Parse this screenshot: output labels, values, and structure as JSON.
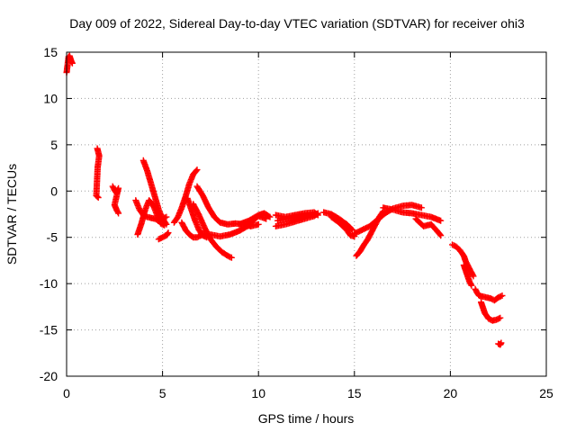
{
  "chart_data": {
    "type": "scatter",
    "title": "Day 009 of 2022, Sidereal Day-to-day VTEC variation (SDTVAR) for receiver ohi3",
    "xlabel": "GPS time / hours",
    "ylabel": "SDTVAR / TECUs",
    "xlim": [
      0,
      25
    ],
    "ylim": [
      -20,
      15
    ],
    "xticks": [
      0,
      5,
      10,
      15,
      20,
      25
    ],
    "xtick_labels": [
      "0",
      "5",
      "10",
      "15",
      "20",
      "25"
    ],
    "yticks": [
      -20,
      -15,
      -10,
      -5,
      0,
      5,
      10,
      15
    ],
    "ytick_labels": [
      "-20",
      "-15",
      "-10",
      "-5",
      "0",
      "5",
      "10",
      "15"
    ],
    "grid": true,
    "marker": "+",
    "color": "#ff0000",
    "series": [
      {
        "name": "s01",
        "points": [
          [
            0.0,
            12.8
          ],
          [
            0.05,
            13.6
          ],
          [
            0.1,
            14.5
          ],
          [
            0.15,
            14.6
          ],
          [
            0.2,
            14.3
          ],
          [
            0.25,
            14.0
          ],
          [
            0.3,
            13.8
          ]
        ]
      },
      {
        "name": "s02",
        "points": [
          [
            1.6,
            4.6
          ],
          [
            1.65,
            4.2
          ],
          [
            1.7,
            3.8
          ],
          [
            1.62,
            2.6
          ],
          [
            1.55,
            -0.5
          ],
          [
            1.65,
            -0.7
          ]
        ]
      },
      {
        "name": "s03",
        "points": [
          [
            2.4,
            0.5
          ],
          [
            2.5,
            0.1
          ],
          [
            2.6,
            -0.2
          ],
          [
            2.7,
            0.3
          ],
          [
            2.5,
            -1.5
          ],
          [
            2.6,
            -2.0
          ],
          [
            2.7,
            -2.4
          ]
        ]
      },
      {
        "name": "s04",
        "points": [
          [
            3.6,
            -1.0
          ],
          [
            3.8,
            -2.0
          ],
          [
            4.0,
            -2.6
          ],
          [
            4.2,
            -2.8
          ],
          [
            4.4,
            -2.9
          ],
          [
            4.6,
            -3.0
          ],
          [
            4.8,
            -3.2
          ],
          [
            5.0,
            -3.0
          ],
          [
            5.2,
            -2.8
          ]
        ]
      },
      {
        "name": "s05",
        "points": [
          [
            3.7,
            -4.7
          ],
          [
            3.9,
            -3.5
          ],
          [
            4.1,
            -2.0
          ],
          [
            4.3,
            -1.0
          ],
          [
            4.5,
            -1.5
          ],
          [
            4.7,
            -2.5
          ],
          [
            4.9,
            -3.5
          ],
          [
            5.1,
            -3.7
          ]
        ]
      },
      {
        "name": "s06",
        "points": [
          [
            4.0,
            3.3
          ],
          [
            4.2,
            2.2
          ],
          [
            4.4,
            0.8
          ],
          [
            4.6,
            -0.6
          ],
          [
            4.8,
            -2.0
          ],
          [
            5.0,
            -3.0
          ],
          [
            5.2,
            -3.6
          ]
        ]
      },
      {
        "name": "s07",
        "points": [
          [
            4.8,
            -5.2
          ],
          [
            5.0,
            -5.0
          ],
          [
            5.2,
            -4.8
          ],
          [
            5.3,
            -4.5
          ]
        ]
      },
      {
        "name": "s08",
        "points": [
          [
            5.6,
            -3.4
          ],
          [
            5.8,
            -2.8
          ],
          [
            6.0,
            -1.8
          ],
          [
            6.2,
            -0.6
          ],
          [
            6.4,
            0.8
          ],
          [
            6.6,
            1.8
          ],
          [
            6.8,
            2.3
          ]
        ]
      },
      {
        "name": "s09",
        "points": [
          [
            6.0,
            -3.4
          ],
          [
            6.2,
            -4.2
          ],
          [
            6.4,
            -4.7
          ],
          [
            6.6,
            -5.0
          ],
          [
            6.8,
            -5.0
          ],
          [
            7.0,
            -4.8
          ],
          [
            7.2,
            -4.6
          ]
        ]
      },
      {
        "name": "s10",
        "points": [
          [
            6.3,
            -0.8
          ],
          [
            6.5,
            -2.0
          ],
          [
            6.7,
            -3.2
          ],
          [
            6.9,
            -4.2
          ],
          [
            7.1,
            -4.8
          ],
          [
            7.3,
            -5.0
          ]
        ]
      },
      {
        "name": "s11",
        "points": [
          [
            6.6,
            -1.4
          ],
          [
            6.9,
            -2.6
          ],
          [
            7.2,
            -4.0
          ],
          [
            7.5,
            -5.2
          ],
          [
            7.8,
            -6.0
          ],
          [
            8.1,
            -6.6
          ],
          [
            8.4,
            -7.0
          ],
          [
            8.6,
            -7.2
          ]
        ]
      },
      {
        "name": "s12",
        "points": [
          [
            6.8,
            0.5
          ],
          [
            7.1,
            -0.5
          ],
          [
            7.4,
            -1.8
          ],
          [
            7.7,
            -2.8
          ],
          [
            8.0,
            -3.4
          ],
          [
            8.4,
            -3.6
          ],
          [
            8.8,
            -3.5
          ],
          [
            9.2,
            -3.6
          ],
          [
            9.6,
            -3.8
          ],
          [
            10.0,
            -3.6
          ]
        ]
      },
      {
        "name": "s13",
        "points": [
          [
            7.5,
            -4.7
          ],
          [
            8.0,
            -4.9
          ],
          [
            8.5,
            -4.7
          ],
          [
            9.0,
            -4.3
          ],
          [
            9.5,
            -3.7
          ],
          [
            9.8,
            -3.0
          ],
          [
            10.0,
            -2.7
          ],
          [
            10.4,
            -3.0
          ]
        ]
      },
      {
        "name": "s14",
        "points": [
          [
            9.0,
            -3.6
          ],
          [
            9.5,
            -3.2
          ],
          [
            10.0,
            -2.6
          ],
          [
            10.3,
            -2.4
          ],
          [
            10.6,
            -2.8
          ]
        ]
      },
      {
        "name": "s15",
        "points": [
          [
            10.9,
            -3.8
          ],
          [
            11.4,
            -3.6
          ],
          [
            11.9,
            -3.3
          ],
          [
            12.4,
            -3.0
          ],
          [
            12.9,
            -2.7
          ],
          [
            13.1,
            -2.4
          ]
        ]
      },
      {
        "name": "s16",
        "points": [
          [
            10.9,
            -2.6
          ],
          [
            11.4,
            -2.8
          ],
          [
            11.9,
            -2.6
          ],
          [
            12.4,
            -2.4
          ],
          [
            12.9,
            -2.3
          ],
          [
            13.1,
            -2.6
          ]
        ]
      },
      {
        "name": "s17",
        "points": [
          [
            11.0,
            -3.2
          ],
          [
            11.5,
            -3.0
          ],
          [
            12.0,
            -2.9
          ],
          [
            12.5,
            -2.7
          ],
          [
            13.0,
            -2.5
          ]
        ]
      },
      {
        "name": "s18",
        "points": [
          [
            13.4,
            -2.3
          ],
          [
            13.8,
            -2.5
          ],
          [
            14.2,
            -3.0
          ],
          [
            14.6,
            -3.6
          ],
          [
            14.9,
            -4.2
          ]
        ]
      },
      {
        "name": "s19",
        "points": [
          [
            13.8,
            -2.8
          ],
          [
            14.2,
            -3.4
          ],
          [
            14.6,
            -4.2
          ],
          [
            14.8,
            -4.8
          ],
          [
            15.0,
            -4.9
          ]
        ]
      },
      {
        "name": "s20",
        "points": [
          [
            15.0,
            -4.6
          ],
          [
            15.4,
            -4.2
          ],
          [
            15.8,
            -3.8
          ],
          [
            16.2,
            -3.1
          ],
          [
            16.6,
            -2.4
          ],
          [
            17.0,
            -1.9
          ],
          [
            17.5,
            -1.6
          ],
          [
            18.0,
            -1.5
          ],
          [
            18.5,
            -1.8
          ]
        ]
      },
      {
        "name": "s21",
        "points": [
          [
            15.1,
            -7.0
          ],
          [
            15.3,
            -6.5
          ],
          [
            15.5,
            -5.8
          ],
          [
            15.7,
            -5.2
          ],
          [
            15.9,
            -4.4
          ],
          [
            16.1,
            -3.6
          ],
          [
            16.3,
            -2.8
          ],
          [
            16.5,
            -2.2
          ]
        ]
      },
      {
        "name": "s22",
        "points": [
          [
            16.5,
            -1.8
          ],
          [
            17.0,
            -2.0
          ],
          [
            17.5,
            -2.3
          ],
          [
            18.0,
            -2.4
          ],
          [
            18.5,
            -2.6
          ],
          [
            19.0,
            -2.8
          ],
          [
            19.5,
            -3.2
          ]
        ]
      },
      {
        "name": "s23",
        "points": [
          [
            18.2,
            -3.0
          ],
          [
            18.4,
            -3.4
          ],
          [
            18.6,
            -3.8
          ],
          [
            19.0,
            -3.6
          ],
          [
            19.3,
            -4.3
          ],
          [
            19.5,
            -4.8
          ]
        ]
      },
      {
        "name": "s24",
        "points": [
          [
            20.1,
            -5.8
          ],
          [
            20.3,
            -6.0
          ],
          [
            20.5,
            -6.4
          ],
          [
            20.7,
            -7.0
          ],
          [
            20.8,
            -7.6
          ],
          [
            21.0,
            -8.4
          ],
          [
            21.2,
            -9.2
          ]
        ]
      },
      {
        "name": "s25",
        "points": [
          [
            20.7,
            -8.0
          ],
          [
            20.8,
            -8.6
          ],
          [
            20.9,
            -9.2
          ],
          [
            21.0,
            -9.8
          ],
          [
            21.1,
            -10.2
          ]
        ]
      },
      {
        "name": "s26",
        "points": [
          [
            21.3,
            -10.6
          ],
          [
            21.4,
            -11.0
          ],
          [
            21.5,
            -11.3
          ],
          [
            21.7,
            -11.4
          ],
          [
            21.9,
            -11.5
          ],
          [
            22.1,
            -11.6
          ],
          [
            22.3,
            -11.8
          ],
          [
            22.5,
            -11.5
          ],
          [
            22.7,
            -11.3
          ]
        ]
      },
      {
        "name": "s27",
        "points": [
          [
            21.6,
            -12.0
          ],
          [
            21.7,
            -12.6
          ],
          [
            21.8,
            -13.2
          ],
          [
            22.0,
            -13.8
          ],
          [
            22.2,
            -14.0
          ],
          [
            22.4,
            -13.9
          ],
          [
            22.6,
            -13.7
          ]
        ]
      },
      {
        "name": "s28",
        "points": [
          [
            22.5,
            -16.5
          ],
          [
            22.6,
            -16.6
          ],
          [
            22.65,
            -16.4
          ]
        ]
      }
    ]
  }
}
